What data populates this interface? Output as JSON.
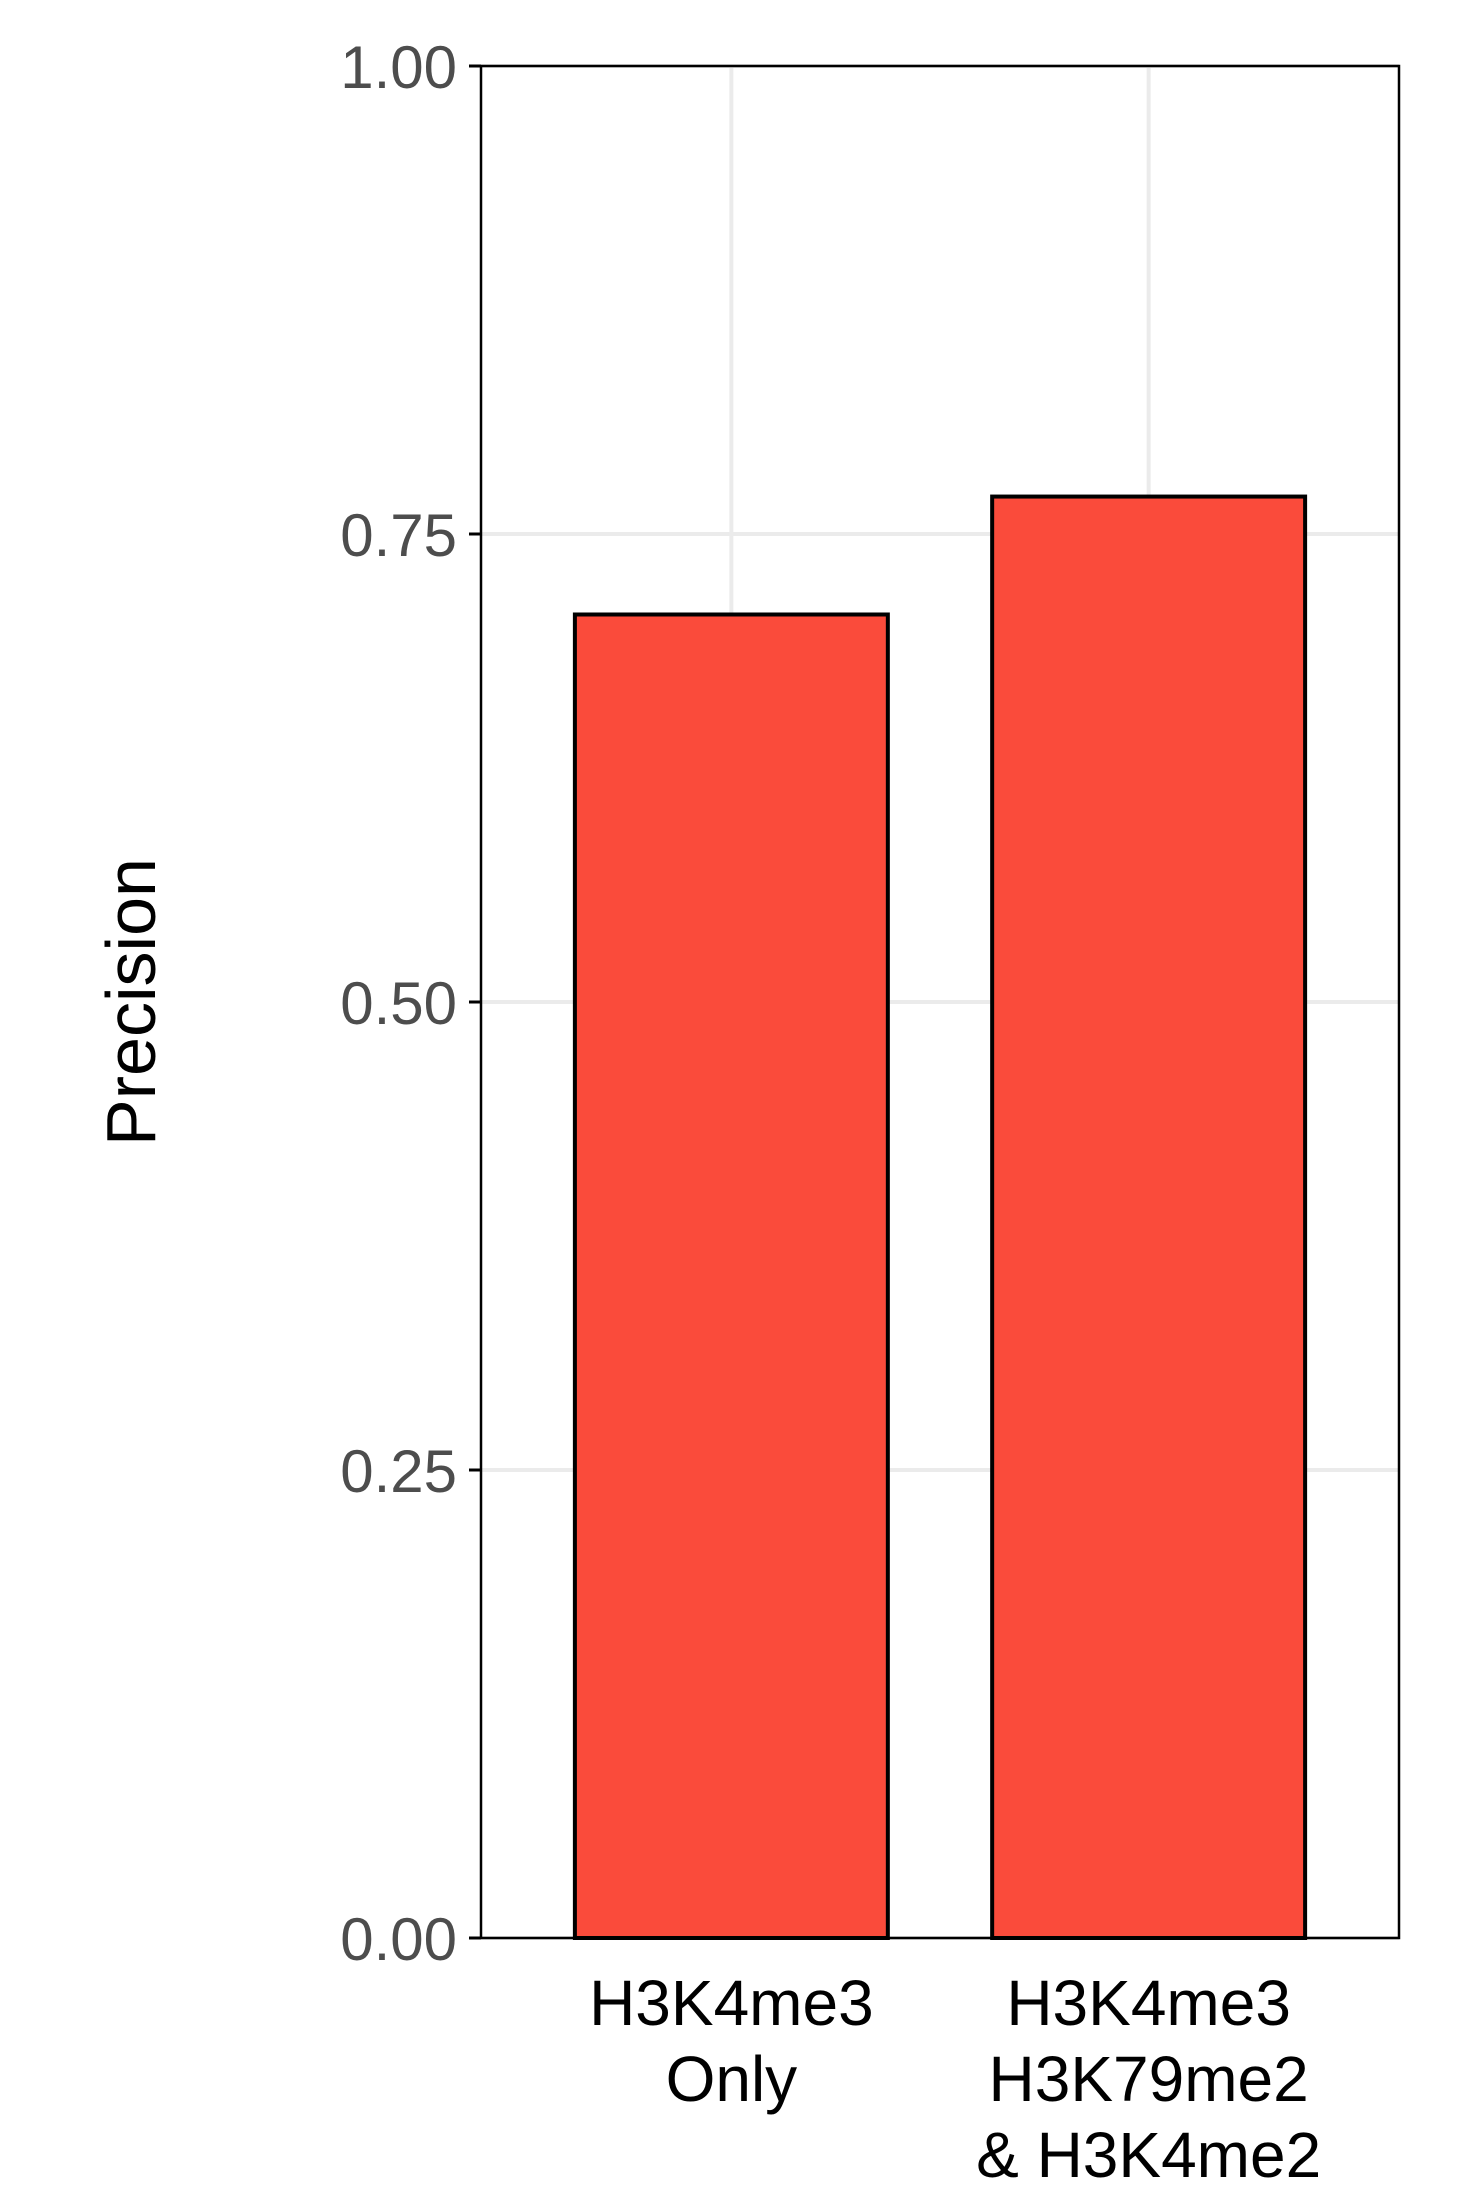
{
  "chart_data": {
    "type": "bar",
    "title": "",
    "xlabel": "",
    "ylabel": "Precision",
    "categories": [
      [
        "H3K4me3",
        "Only"
      ],
      [
        "H3K4me3",
        "H3K79me2",
        "& H3K4me2"
      ]
    ],
    "values": [
      0.707,
      0.77
    ],
    "ylim": [
      0,
      1
    ],
    "yticks": [
      0,
      0.25,
      0.5,
      0.75,
      1.0
    ],
    "ytick_labels": [
      "0.00",
      "0.25",
      "0.50",
      "0.75",
      "1.00"
    ],
    "grid": true,
    "legend": "none",
    "colors": {
      "bar_fill": "#FA4B3B",
      "bar_stroke": "#000000",
      "grid": "#EBEBEB",
      "axis": "#000000",
      "tick_label": "#4D4D4D",
      "axis_label": "#000000",
      "background": "#FFFFFF"
    }
  }
}
